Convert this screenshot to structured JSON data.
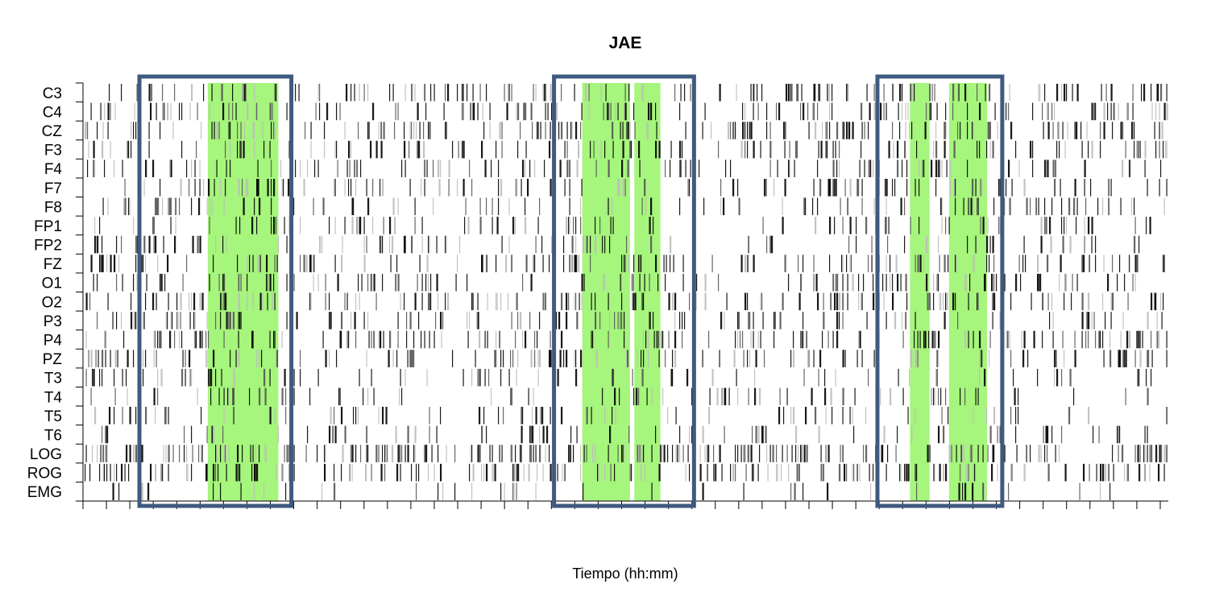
{
  "chart_data": {
    "type": "heatmap",
    "title": "JAE",
    "xlabel": "Tiempo (hh:mm)",
    "ylabel": "",
    "channels": [
      "C3",
      "C4",
      "CZ",
      "F3",
      "F4",
      "F7",
      "F8",
      "FP1",
      "FP2",
      "FZ",
      "O1",
      "O2",
      "P3",
      "P4",
      "PZ",
      "T3",
      "T4",
      "T5",
      "T6",
      "LOG",
      "ROG",
      "EMG"
    ],
    "x_tick_count": 47,
    "time_span": [
      0,
      100
    ],
    "x_tick_labels": [],
    "highlight_color": "#a6f57c",
    "box_color": "#3e5a80",
    "highlight_regions": [
      [
        11.5,
        18.0
      ],
      [
        46.0,
        50.4
      ],
      [
        50.8,
        53.2
      ],
      [
        76.2,
        78.0
      ],
      [
        79.8,
        83.3
      ]
    ],
    "boxes": [
      [
        5.2,
        19.2
      ],
      [
        43.4,
        56.3
      ],
      [
        73.2,
        84.7
      ]
    ],
    "activity": [
      {
        "channel": "C3",
        "density": 0.5
      },
      {
        "channel": "C4",
        "density": 0.42
      },
      {
        "channel": "CZ",
        "density": 0.55
      },
      {
        "channel": "F3",
        "density": 0.38
      },
      {
        "channel": "F4",
        "density": 0.35
      },
      {
        "channel": "F7",
        "density": 0.4
      },
      {
        "channel": "F8",
        "density": 0.42
      },
      {
        "channel": "FP1",
        "density": 0.3
      },
      {
        "channel": "FP2",
        "density": 0.32
      },
      {
        "channel": "FZ",
        "density": 0.45
      },
      {
        "channel": "O1",
        "density": 0.42
      },
      {
        "channel": "O2",
        "density": 0.48
      },
      {
        "channel": "P3",
        "density": 0.4
      },
      {
        "channel": "P4",
        "density": 0.52
      },
      {
        "channel": "PZ",
        "density": 0.4
      },
      {
        "channel": "T3",
        "density": 0.3
      },
      {
        "channel": "T4",
        "density": 0.26
      },
      {
        "channel": "T5",
        "density": 0.22
      },
      {
        "channel": "T6",
        "density": 0.28
      },
      {
        "channel": "LOG",
        "density": 0.7
      },
      {
        "channel": "ROG",
        "density": 0.62
      },
      {
        "channel": "EMG",
        "density": 0.14
      }
    ]
  }
}
